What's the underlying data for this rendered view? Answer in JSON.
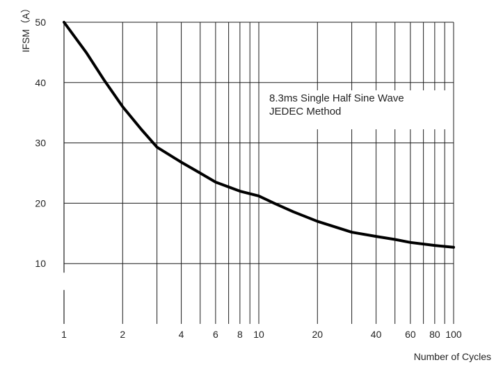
{
  "chart_data": {
    "type": "line",
    "title": "",
    "xlabel": "Number of Cycles",
    "ylabel": "IFSM（A）",
    "x_scale": "log",
    "xlim": [
      1,
      100
    ],
    "ylim": [
      0,
      50
    ],
    "grid": true,
    "x_ticks": [
      1,
      2,
      4,
      6,
      8,
      10,
      20,
      40,
      60,
      80,
      100
    ],
    "y_ticks": [
      10,
      20,
      30,
      40,
      50
    ],
    "annotation": [
      "8.3ms Single Half Sine Wave",
      "JEDEC Method"
    ],
    "series": [
      {
        "x": [
          1,
          1.3,
          1.6,
          2,
          2.5,
          3,
          4,
          5,
          6,
          8,
          10,
          12,
          15,
          20,
          30,
          40,
          50,
          60,
          80,
          100
        ],
        "y": [
          50,
          45,
          40.5,
          36,
          32.2,
          29.3,
          26.8,
          25,
          23.5,
          22,
          21.2,
          20,
          18.6,
          17,
          15.2,
          14.5,
          14,
          13.5,
          13,
          12.7
        ],
        "color": "#000000"
      }
    ]
  }
}
